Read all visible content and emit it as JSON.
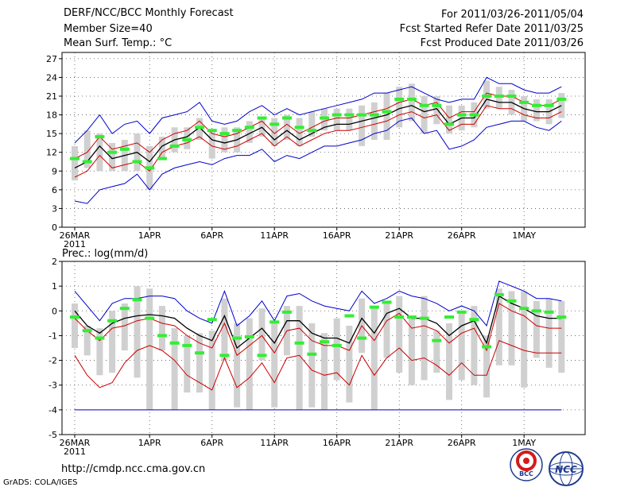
{
  "header": {
    "title": "DERF/NCC/BCC Monthly Forecast",
    "member_size": "Member Size=40",
    "variable": "Mean Surf. Temp.: °C",
    "period": "For 2011/03/26-2011/05/04",
    "started": "Fcst Started Refer Date 2011/03/25",
    "produced": "Fcst Produced Date 2011/03/26"
  },
  "footer": {
    "url": "http://cmdp.ncc.cma.gov.cn",
    "grads": "GrADS: COLA/IGES",
    "logo_bcc": "BCC",
    "logo_ncc": "NCC"
  },
  "colors": {
    "envelope": "#0000cc",
    "spread": "#cc0000",
    "mean": "#000000",
    "bar": "#d0d0d0",
    "dash": "#33ee33",
    "grid": "#555555"
  },
  "chart_data": [
    {
      "type": "line",
      "title": "Mean Surf. Temp.: °C",
      "x": [
        "03-26",
        "03-27",
        "03-28",
        "03-29",
        "03-30",
        "03-31",
        "04-01",
        "04-02",
        "04-03",
        "04-04",
        "04-05",
        "04-06",
        "04-07",
        "04-08",
        "04-09",
        "04-10",
        "04-11",
        "04-12",
        "04-13",
        "04-14",
        "04-15",
        "04-16",
        "04-17",
        "04-18",
        "04-19",
        "04-20",
        "04-21",
        "04-22",
        "04-23",
        "04-24",
        "04-25",
        "04-26",
        "04-27",
        "04-28",
        "04-29",
        "04-30",
        "05-01",
        "05-02",
        "05-03",
        "05-04"
      ],
      "xticks": [
        {
          "label": "26MAR",
          "sub": "2011",
          "day": 0
        },
        {
          "label": "1APR",
          "day": 6
        },
        {
          "label": "6APR",
          "day": 11
        },
        {
          "label": "11APR",
          "day": 16
        },
        {
          "label": "16APR",
          "day": 21
        },
        {
          "label": "21APR",
          "day": 26
        },
        {
          "label": "26APR",
          "day": 31
        },
        {
          "label": "1MAY",
          "day": 36
        }
      ],
      "ylim": [
        0,
        28
      ],
      "yticks": [
        0,
        3,
        6,
        9,
        12,
        15,
        18,
        21,
        24,
        27
      ],
      "series": [
        {
          "name": "ensemble max",
          "color": "#0000cc",
          "values": [
            13.5,
            15.5,
            18.0,
            15.0,
            16.5,
            17.0,
            15.0,
            17.5,
            18.0,
            18.5,
            20.0,
            17.0,
            16.5,
            17.0,
            18.5,
            19.5,
            18.0,
            19.0,
            18.0,
            18.5,
            19.0,
            19.5,
            20.0,
            20.5,
            21.5,
            21.5,
            22.0,
            22.5,
            21.5,
            20.5,
            20.0,
            20.5,
            20.5,
            24.0,
            23.0,
            23.0,
            22.0,
            21.5,
            21.5,
            22.5
          ]
        },
        {
          "name": "upper spread",
          "color": "#cc0000",
          "values": [
            11.0,
            12.0,
            14.5,
            12.5,
            13.0,
            13.5,
            12.0,
            14.0,
            15.0,
            15.5,
            17.0,
            15.0,
            14.5,
            15.0,
            16.0,
            17.0,
            15.0,
            16.5,
            15.0,
            16.0,
            17.0,
            17.5,
            17.5,
            18.0,
            18.5,
            19.0,
            20.0,
            20.5,
            19.5,
            20.0,
            17.5,
            18.5,
            18.5,
            21.5,
            21.0,
            21.0,
            20.0,
            19.5,
            19.5,
            20.5
          ]
        },
        {
          "name": "ensemble mean",
          "color": "#000000",
          "values": [
            9.5,
            10.5,
            13.0,
            11.0,
            11.5,
            12.0,
            10.5,
            13.0,
            14.0,
            14.5,
            16.0,
            14.0,
            13.5,
            14.0,
            15.0,
            16.0,
            14.0,
            15.5,
            14.0,
            15.0,
            16.0,
            16.5,
            16.5,
            17.0,
            17.5,
            18.0,
            19.0,
            19.5,
            18.5,
            19.0,
            16.5,
            17.5,
            17.5,
            20.5,
            20.0,
            20.0,
            19.0,
            18.5,
            18.5,
            19.5
          ]
        },
        {
          "name": "lower spread",
          "color": "#cc0000",
          "values": [
            8.0,
            9.0,
            11.5,
            9.5,
            10.0,
            10.5,
            9.0,
            12.0,
            13.0,
            13.5,
            14.5,
            13.0,
            12.5,
            13.0,
            14.0,
            15.0,
            13.0,
            14.5,
            13.0,
            14.0,
            15.0,
            15.5,
            15.5,
            16.0,
            16.5,
            17.0,
            18.0,
            18.5,
            17.5,
            18.0,
            15.5,
            16.5,
            16.5,
            19.5,
            19.0,
            19.0,
            18.0,
            17.5,
            17.5,
            18.5
          ]
        },
        {
          "name": "ensemble min",
          "color": "#0000cc",
          "values": [
            4.2,
            3.8,
            6.0,
            6.5,
            7.0,
            8.5,
            6.0,
            8.5,
            9.5,
            10.0,
            10.5,
            10.0,
            11.0,
            11.5,
            11.5,
            12.5,
            10.5,
            11.5,
            11.0,
            12.0,
            13.0,
            13.0,
            13.5,
            14.0,
            15.0,
            15.5,
            17.0,
            17.5,
            15.0,
            15.5,
            12.5,
            13.0,
            14.0,
            16.0,
            16.5,
            17.0,
            17.0,
            16.0,
            15.5,
            17.0
          ]
        }
      ],
      "bars": {
        "low": [
          7.5,
          9.5,
          9.0,
          9.0,
          9.0,
          9.0,
          6.0,
          11.0,
          12.0,
          12.5,
          14.0,
          11.0,
          12.0,
          12.0,
          13.5,
          14.5,
          13.0,
          14.0,
          13.0,
          14.5,
          15.5,
          15.5,
          15.5,
          13.0,
          14.0,
          14.0,
          16.0,
          17.0,
          15.0,
          16.5,
          15.0,
          15.5,
          16.0,
          19.0,
          19.0,
          18.0,
          17.0,
          17.0,
          16.5,
          17.5
        ],
        "high": [
          13.0,
          15.5,
          15.0,
          13.5,
          14.0,
          15.0,
          13.0,
          14.5,
          16.0,
          16.0,
          17.5,
          15.5,
          16.0,
          16.0,
          17.0,
          17.5,
          17.5,
          18.0,
          17.5,
          18.5,
          19.0,
          19.0,
          19.0,
          19.5,
          20.0,
          21.5,
          22.5,
          23.0,
          21.0,
          21.0,
          19.5,
          19.5,
          20.0,
          23.5,
          22.5,
          22.0,
          21.0,
          20.5,
          20.5,
          21.5
        ]
      },
      "climatology": [
        11.0,
        10.5,
        14.5,
        12.0,
        12.5,
        10.5,
        9.5,
        11.0,
        13.0,
        14.0,
        16.0,
        15.5,
        15.0,
        15.5,
        16.0,
        17.5,
        16.5,
        17.5,
        16.0,
        15.5,
        17.5,
        18.0,
        18.0,
        18.0,
        18.0,
        18.5,
        20.5,
        20.5,
        19.5,
        19.5,
        16.5,
        18.0,
        18.0,
        21.0,
        21.0,
        21.0,
        20.0,
        19.5,
        19.5,
        20.5
      ]
    },
    {
      "type": "line",
      "title": "Prec.: log(mm/d)",
      "x": [
        "03-26",
        "03-27",
        "03-28",
        "03-29",
        "03-30",
        "03-31",
        "04-01",
        "04-02",
        "04-03",
        "04-04",
        "04-05",
        "04-06",
        "04-07",
        "04-08",
        "04-09",
        "04-10",
        "04-11",
        "04-12",
        "04-13",
        "04-14",
        "04-15",
        "04-16",
        "04-17",
        "04-18",
        "04-19",
        "04-20",
        "04-21",
        "04-22",
        "04-23",
        "04-24",
        "04-25",
        "04-26",
        "04-27",
        "04-28",
        "04-29",
        "04-30",
        "05-01",
        "05-02",
        "05-03",
        "05-04"
      ],
      "xticks": [
        {
          "label": "26MAR",
          "sub": "2011",
          "day": 0
        },
        {
          "label": "1APR",
          "day": 6
        },
        {
          "label": "6APR",
          "day": 11
        },
        {
          "label": "11APR",
          "day": 16
        },
        {
          "label": "16APR",
          "day": 21
        },
        {
          "label": "21APR",
          "day": 26
        },
        {
          "label": "26APR",
          "day": 31
        },
        {
          "label": "1MAY",
          "day": 36
        }
      ],
      "ylim": [
        -5,
        2
      ],
      "yticks": [
        -5,
        -4,
        -3,
        -2,
        -1,
        0,
        1,
        2
      ],
      "floor": -4,
      "series": [
        {
          "name": "ensemble max",
          "color": "#0000cc",
          "values": [
            0.8,
            0.2,
            -0.4,
            0.3,
            0.5,
            0.5,
            0.6,
            0.6,
            0.5,
            0.0,
            -0.3,
            -0.5,
            0.8,
            -0.6,
            -0.2,
            0.4,
            -0.4,
            0.6,
            0.7,
            0.4,
            0.2,
            0.1,
            0.0,
            0.8,
            0.3,
            0.5,
            0.8,
            0.6,
            0.5,
            0.3,
            0.0,
            0.2,
            0.0,
            -0.6,
            1.2,
            1.0,
            0.8,
            0.5,
            0.5,
            0.4
          ]
        },
        {
          "name": "upper spread",
          "color": "#cc0000",
          "values": [
            -0.3,
            -0.8,
            -1.2,
            -0.7,
            -0.6,
            -0.4,
            -0.3,
            -0.5,
            -0.6,
            -1.0,
            -1.3,
            -1.5,
            -0.5,
            -1.8,
            -1.4,
            -1.0,
            -1.7,
            -0.8,
            -0.7,
            -1.2,
            -1.4,
            -1.4,
            -1.6,
            -0.6,
            -1.2,
            -0.4,
            -0.1,
            -0.7,
            -0.6,
            -0.8,
            -1.3,
            -0.9,
            -0.7,
            -1.6,
            0.3,
            0.0,
            -0.2,
            -0.6,
            -0.7,
            -0.7
          ]
        },
        {
          "name": "ensemble mean",
          "color": "#000000",
          "values": [
            0.0,
            -0.6,
            -0.9,
            -0.5,
            -0.3,
            -0.2,
            -0.15,
            -0.2,
            -0.3,
            -0.7,
            -1.0,
            -1.2,
            -0.2,
            -1.5,
            -1.1,
            -0.7,
            -1.3,
            -0.4,
            -0.4,
            -0.9,
            -1.1,
            -1.1,
            -1.3,
            -0.3,
            -0.9,
            -0.1,
            0.1,
            -0.3,
            -0.3,
            -0.5,
            -1.0,
            -0.6,
            -0.4,
            -1.3,
            0.6,
            0.3,
            0.1,
            -0.2,
            -0.3,
            -0.3
          ]
        },
        {
          "name": "lower spread",
          "color": "#cc0000",
          "values": [
            -1.8,
            -2.6,
            -3.1,
            -2.9,
            -2.1,
            -1.6,
            -1.4,
            -1.6,
            -2.0,
            -2.6,
            -2.9,
            -3.2,
            -1.9,
            -3.1,
            -2.7,
            -2.1,
            -2.9,
            -1.9,
            -1.8,
            -2.4,
            -2.6,
            -2.5,
            -3.0,
            -1.8,
            -2.6,
            -1.9,
            -1.5,
            -2.0,
            -1.9,
            -2.2,
            -2.6,
            -2.1,
            -2.6,
            -2.6,
            -1.2,
            -1.4,
            -1.6,
            -1.7,
            -1.7,
            -1.7
          ]
        }
      ],
      "bars": {
        "low": [
          -1.5,
          -1.8,
          -2.6,
          -2.5,
          -1.6,
          -2.7,
          -4.0,
          -1.6,
          -4.0,
          -3.3,
          -3.3,
          -4.0,
          -2.0,
          -3.9,
          -4.0,
          -2.0,
          -3.9,
          -1.8,
          -4.0,
          -3.9,
          -4.0,
          -2.8,
          -3.7,
          -1.7,
          -4.0,
          -1.9,
          -2.5,
          -3.0,
          -2.8,
          -2.5,
          -3.6,
          -2.8,
          -3.0,
          -3.5,
          -2.2,
          -2.2,
          -3.1,
          -1.9,
          -2.3,
          -2.5
        ],
        "high": [
          0.3,
          -0.6,
          -0.7,
          0.0,
          0.3,
          1.0,
          0.9,
          0.2,
          -0.7,
          -1.0,
          -0.9,
          -0.8,
          0.5,
          -0.5,
          -0.3,
          0.1,
          -0.5,
          0.2,
          0.2,
          -0.5,
          -0.9,
          -0.3,
          -0.6,
          0.5,
          0.2,
          0.3,
          0.6,
          -0.2,
          0.6,
          -0.8,
          -0.5,
          -0.1,
          0.2,
          -1.0,
          0.9,
          0.8,
          0.8,
          0.4,
          0.5,
          0.4
        ]
      },
      "climatology": [
        -0.25,
        -0.8,
        -1.1,
        -0.4,
        0.1,
        0.45,
        -0.3,
        -1.0,
        -1.3,
        -1.4,
        -1.7,
        -0.35,
        -1.8,
        -1.1,
        -1.05,
        -1.8,
        -0.45,
        -0.05,
        -1.3,
        -1.75,
        -1.25,
        -1.4,
        -0.2,
        -1.1,
        0.15,
        0.35,
        -0.25,
        -0.25,
        -0.3,
        -1.2,
        -0.25,
        -0.05,
        -0.35,
        -1.45,
        0.65,
        0.4,
        0.1,
        0.0,
        -0.05,
        -0.25
      ]
    }
  ]
}
